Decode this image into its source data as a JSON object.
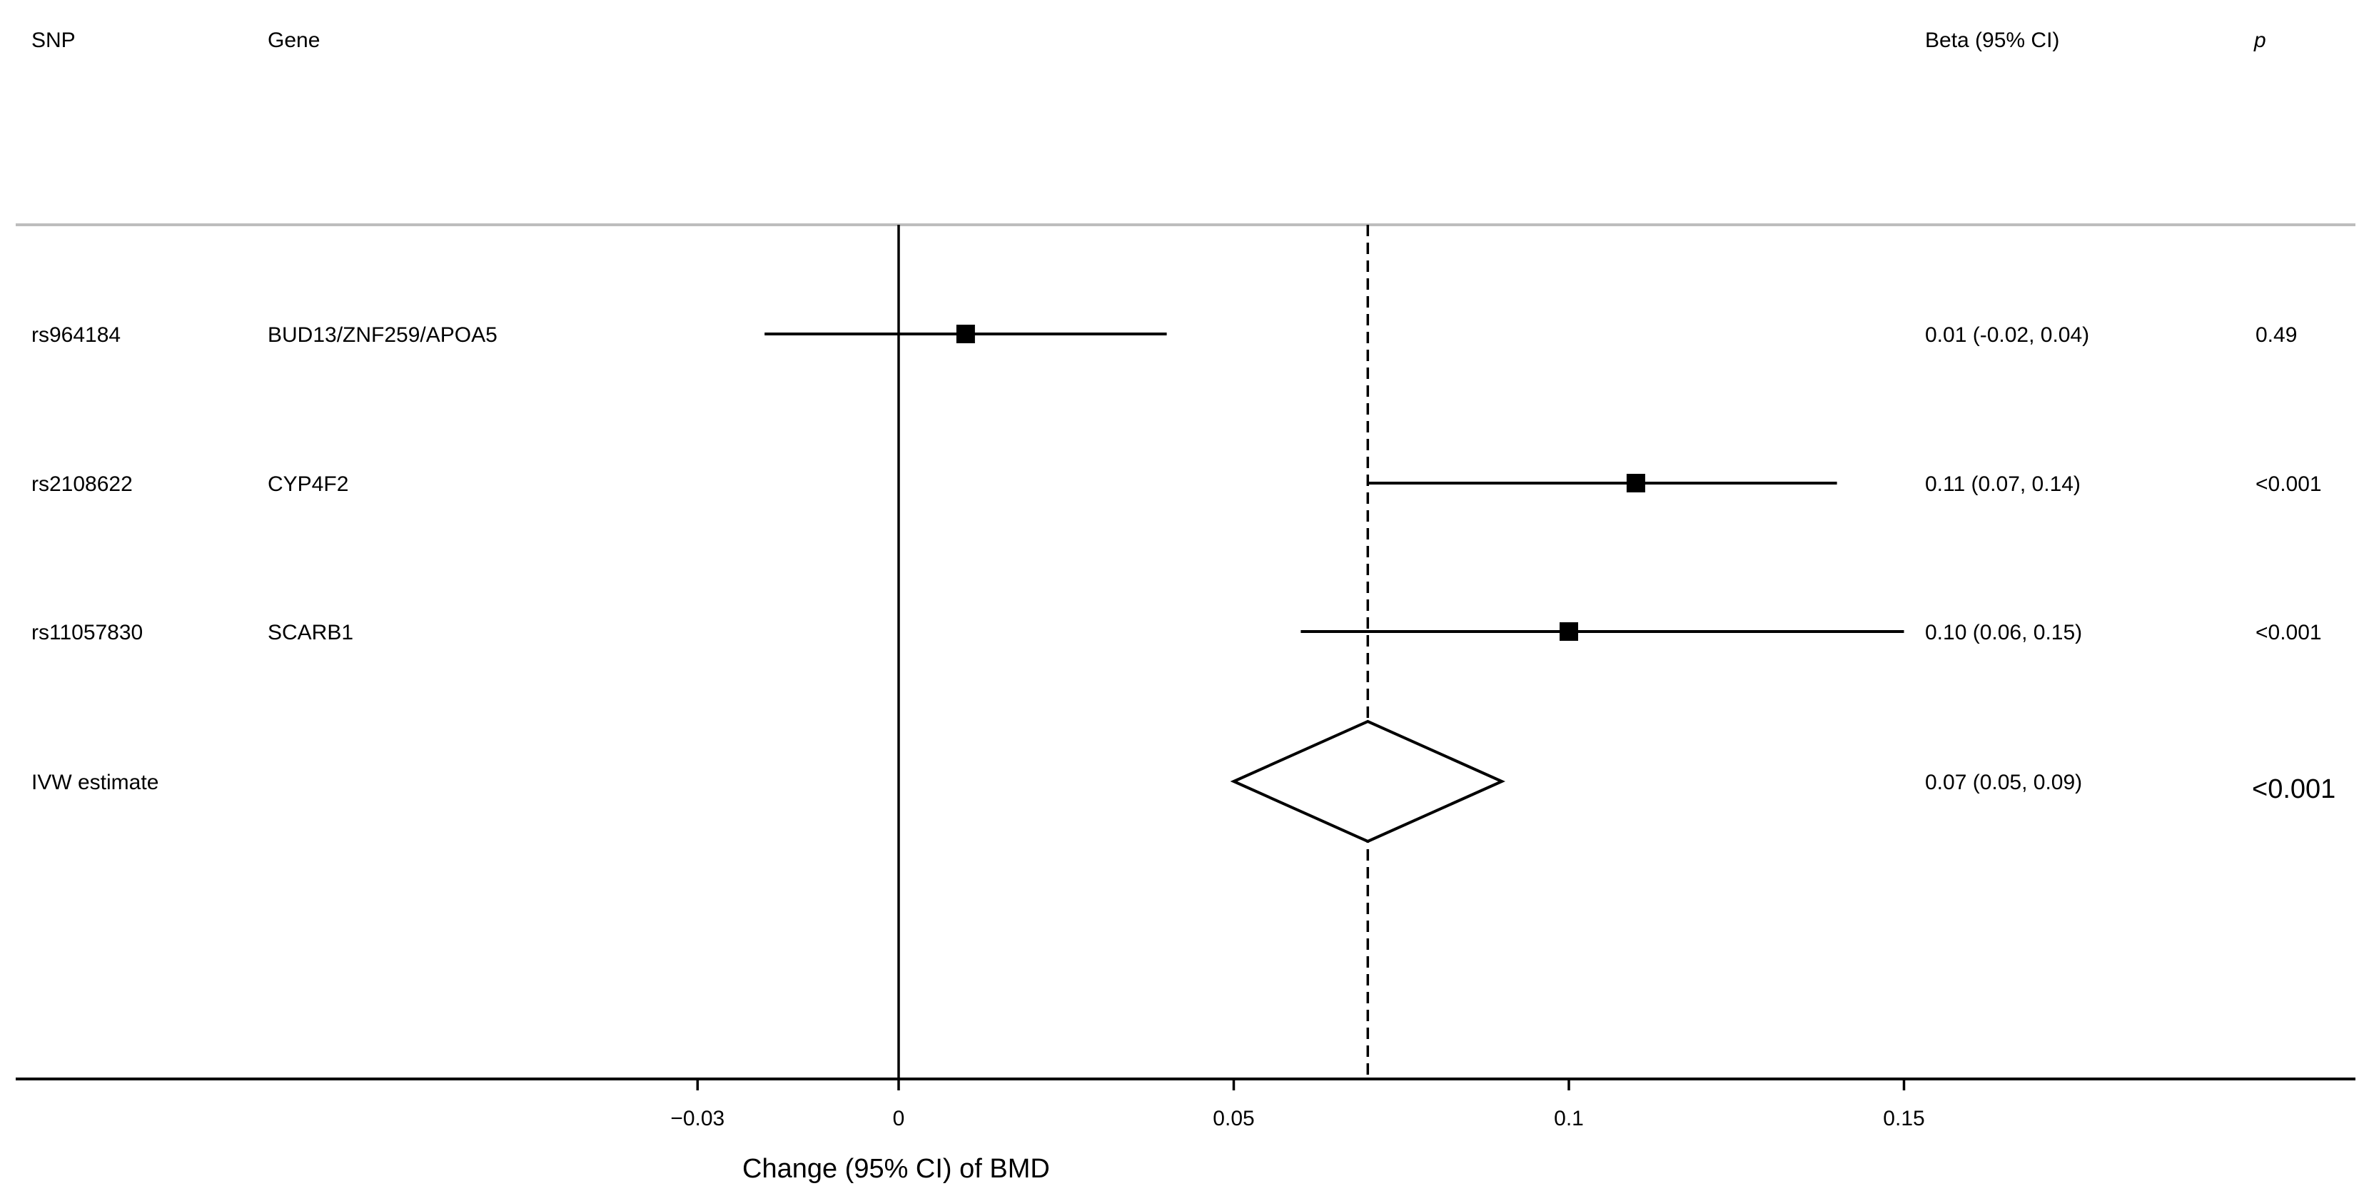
{
  "chart_data": {
    "type": "forest",
    "headers": {
      "snp": "SNP",
      "gene": "Gene",
      "beta": "Beta (95% CI)",
      "p": "p"
    },
    "xlabel": "Change (95% CI) of BMD",
    "xlim": [
      -0.03,
      0.15
    ],
    "xticks": [
      -0.03,
      0,
      0.05,
      0.1,
      0.15
    ],
    "xtick_labels": [
      "−0.03",
      "0",
      "0.05",
      "0.1",
      "0.15"
    ],
    "reference_line": 0,
    "pooled_line": 0.07,
    "rows": [
      {
        "snp": "rs964184",
        "gene": "BUD13/ZNF259/APOA5",
        "beta": 0.01,
        "lower": -0.02,
        "upper": 0.04,
        "beta_ci_text": "0.01 (-0.02, 0.04)",
        "p_text": "0.49",
        "kind": "snp"
      },
      {
        "snp": "rs2108622",
        "gene": "CYP4F2",
        "beta": 0.11,
        "lower": 0.07,
        "upper": 0.14,
        "beta_ci_text": "0.11 (0.07, 0.14)",
        "p_text": "<0.001",
        "kind": "snp"
      },
      {
        "snp": "rs11057830",
        "gene": "SCARB1",
        "beta": 0.1,
        "lower": 0.06,
        "upper": 0.15,
        "beta_ci_text": "0.10 (0.06, 0.15)",
        "p_text": "<0.001",
        "kind": "snp"
      },
      {
        "snp": "IVW estimate",
        "gene": "",
        "beta": 0.07,
        "lower": 0.05,
        "upper": 0.09,
        "beta_ci_text": "0.07 (0.05, 0.09)",
        "p_text": "<0.001",
        "kind": "pooled"
      }
    ],
    "grid": false,
    "legend": "none"
  }
}
